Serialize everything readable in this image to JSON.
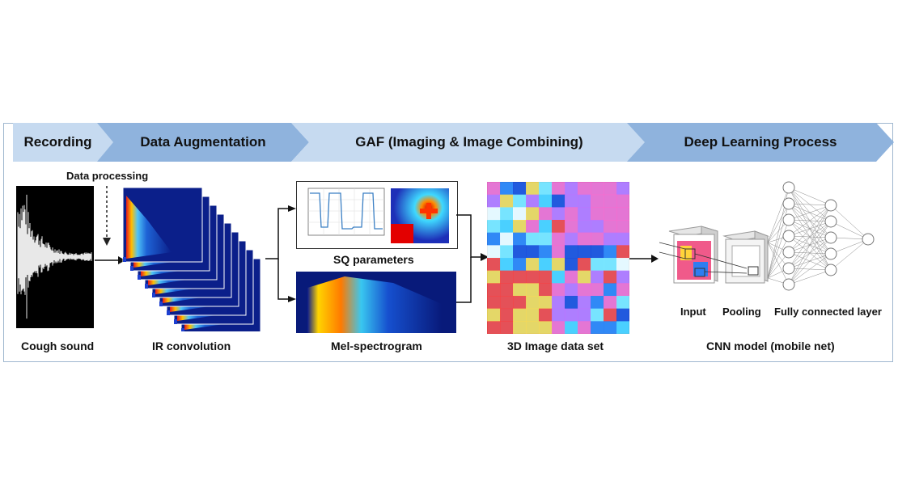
{
  "stages": [
    {
      "label": "Recording"
    },
    {
      "label": "Data Augmentation"
    },
    {
      "label": "GAF (Imaging & Image Combining)"
    },
    {
      "label": "Deep Learning Process"
    }
  ],
  "annotations": {
    "data_processing": "Data processing"
  },
  "captions": {
    "cough_sound": "Cough sound",
    "ir_convolution": "IR convolution",
    "sq_parameters": "SQ parameters",
    "mel_spectrogram": "Mel-spectrogram",
    "image_data_set": "3D Image data set",
    "cnn_model": "CNN model (mobile net)"
  },
  "cnn_layers": {
    "input": "Input",
    "pooling": "Pooling",
    "fully_connected": "Fully connected layer"
  },
  "colors": {
    "stage_light": "#c6daf0",
    "stage_dark": "#8fb3dd",
    "frame": "#9fb7cf"
  }
}
